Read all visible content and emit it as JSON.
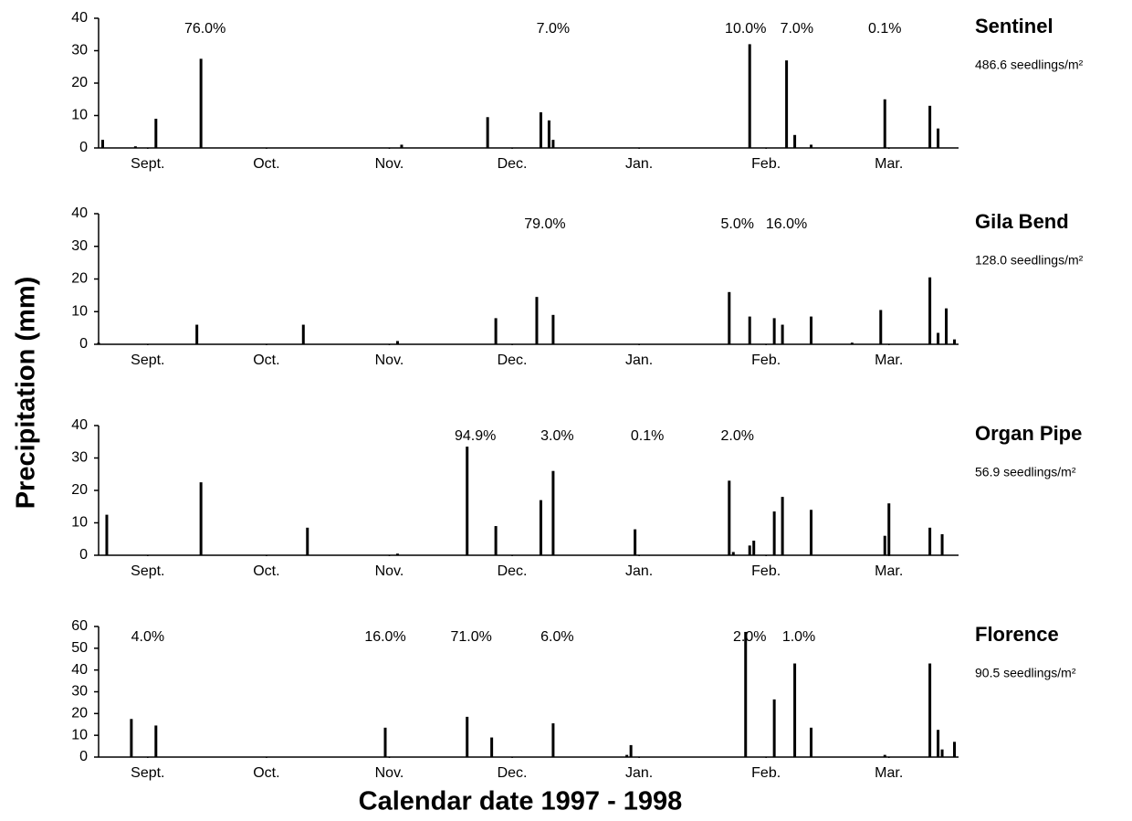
{
  "figure": {
    "ylabel": "Precipitation (mm)",
    "xlabel": "Calendar date 1997 - 1998"
  },
  "chart_data": [
    {
      "type": "bar",
      "title": "Sentinel",
      "subtitle": "486.6 seedlings/m²",
      "color": "#000000",
      "x": [
        1,
        9,
        14,
        25,
        74,
        95,
        108,
        110,
        111,
        159,
        168,
        170,
        174,
        192,
        203,
        205
      ],
      "values": [
        2.5,
        0.5,
        9,
        27.5,
        1,
        9.5,
        11,
        8.5,
        2.5,
        32,
        27,
        4,
        1,
        15,
        13,
        6
      ],
      "xlim": [
        0,
        210
      ],
      "xticks": [
        {
          "value": 12,
          "label": "Sept."
        },
        {
          "value": 41,
          "label": "Oct."
        },
        {
          "value": 71,
          "label": "Nov."
        },
        {
          "value": 101,
          "label": "Dec."
        },
        {
          "value": 132,
          "label": "Jan."
        },
        {
          "value": 163,
          "label": "Feb."
        },
        {
          "value": 193,
          "label": "Mar."
        }
      ],
      "ylim": [
        0,
        40
      ],
      "yticks": [
        0,
        10,
        20,
        30,
        40
      ],
      "annotations": [
        {
          "x": 26,
          "text": "76.0%"
        },
        {
          "x": 111,
          "text": "7.0%"
        },
        {
          "x": 158,
          "text": "10.0%"
        },
        {
          "x": 170.5,
          "text": "7.0%"
        },
        {
          "x": 192,
          "text": "0.1%"
        }
      ]
    },
    {
      "type": "bar",
      "title": "Gila Bend",
      "subtitle": "128.0 seedlings/m²",
      "color": "#000000",
      "x": [
        0,
        24,
        50,
        73,
        97,
        107,
        111,
        154,
        159,
        165,
        167,
        174,
        184,
        191,
        203,
        205,
        207,
        209
      ],
      "values": [
        0.5,
        6,
        6,
        1,
        8,
        14.5,
        9,
        16,
        8.5,
        8,
        6,
        8.5,
        0.5,
        10.5,
        20.5,
        3.5,
        11,
        1.5
      ],
      "xlim": [
        0,
        210
      ],
      "xticks": [
        {
          "value": 12,
          "label": "Sept."
        },
        {
          "value": 41,
          "label": "Oct."
        },
        {
          "value": 71,
          "label": "Nov."
        },
        {
          "value": 101,
          "label": "Dec."
        },
        {
          "value": 132,
          "label": "Jan."
        },
        {
          "value": 163,
          "label": "Feb."
        },
        {
          "value": 193,
          "label": "Mar."
        }
      ],
      "ylim": [
        0,
        40
      ],
      "yticks": [
        0,
        10,
        20,
        30,
        40
      ],
      "annotations": [
        {
          "x": 109,
          "text": "79.0%"
        },
        {
          "x": 156,
          "text": "5.0%"
        },
        {
          "x": 168,
          "text": "16.0%"
        }
      ]
    },
    {
      "type": "bar",
      "title": "Organ Pipe",
      "subtitle": "56.9 seedlings/m²",
      "color": "#000000",
      "x": [
        2,
        25,
        51,
        73,
        90,
        97,
        108,
        111,
        131,
        154,
        155,
        159,
        160,
        165,
        167,
        174,
        192,
        193,
        203,
        206
      ],
      "values": [
        12.5,
        22.5,
        8.5,
        0.5,
        33.5,
        9,
        17,
        26,
        8,
        23,
        1,
        3,
        4.5,
        13.5,
        18,
        14,
        6,
        16,
        8.5,
        6.5
      ],
      "xlim": [
        0,
        210
      ],
      "xticks": [
        {
          "value": 12,
          "label": "Sept."
        },
        {
          "value": 41,
          "label": "Oct."
        },
        {
          "value": 71,
          "label": "Nov."
        },
        {
          "value": 101,
          "label": "Dec."
        },
        {
          "value": 132,
          "label": "Jan."
        },
        {
          "value": 163,
          "label": "Feb."
        },
        {
          "value": 193,
          "label": "Mar."
        }
      ],
      "ylim": [
        0,
        40
      ],
      "yticks": [
        0,
        10,
        20,
        30,
        40
      ],
      "annotations": [
        {
          "x": 92,
          "text": "94.9%"
        },
        {
          "x": 112,
          "text": "3.0%"
        },
        {
          "x": 134,
          "text": "0.1%"
        },
        {
          "x": 156,
          "text": "2.0%"
        }
      ]
    },
    {
      "type": "bar",
      "title": "Florence",
      "subtitle": "90.5 seedlings/m²",
      "color": "#000000",
      "x": [
        8,
        14,
        70,
        90,
        96,
        111,
        129,
        130,
        158,
        165,
        170,
        174,
        192,
        203,
        205,
        206,
        209
      ],
      "values": [
        17.5,
        14.5,
        13.5,
        18.5,
        9,
        15.5,
        1,
        5.5,
        57.5,
        26.5,
        43,
        13.5,
        1,
        43,
        12.5,
        3.5,
        7
      ],
      "xlim": [
        0,
        210
      ],
      "xticks": [
        {
          "value": 12,
          "label": "Sept."
        },
        {
          "value": 41,
          "label": "Oct."
        },
        {
          "value": 71,
          "label": "Nov."
        },
        {
          "value": 101,
          "label": "Dec."
        },
        {
          "value": 132,
          "label": "Jan."
        },
        {
          "value": 163,
          "label": "Feb."
        },
        {
          "value": 193,
          "label": "Mar."
        }
      ],
      "ylim": [
        0,
        60
      ],
      "yticks": [
        0,
        10,
        20,
        30,
        40,
        50,
        60
      ],
      "annotations": [
        {
          "x": 12,
          "text": "4.0%"
        },
        {
          "x": 70,
          "text": "16.0%"
        },
        {
          "x": 91,
          "text": "71.0%"
        },
        {
          "x": 112,
          "text": "6.0%"
        },
        {
          "x": 159,
          "text": "2.0%"
        },
        {
          "x": 171,
          "text": "1.0%"
        }
      ]
    }
  ]
}
